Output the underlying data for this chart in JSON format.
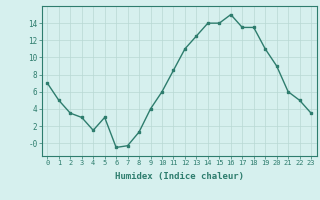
{
  "x": [
    0,
    1,
    2,
    3,
    4,
    5,
    6,
    7,
    8,
    9,
    10,
    11,
    12,
    13,
    14,
    15,
    16,
    17,
    18,
    19,
    20,
    21,
    22,
    23
  ],
  "y": [
    7,
    5,
    3.5,
    3,
    1.5,
    3,
    -0.5,
    -0.3,
    1.3,
    4,
    6,
    8.5,
    11,
    12.5,
    14,
    14,
    15,
    13.5,
    13.5,
    11,
    9,
    6,
    5,
    3.5
  ],
  "line_color": "#2e7d6e",
  "marker_color": "#2e7d6e",
  "bg_color": "#d6f0ee",
  "grid_color": "#b8d8d4",
  "xlabel": "Humidex (Indice chaleur)",
  "ylim": [
    -1.5,
    16
  ],
  "xlim": [
    -0.5,
    23.5
  ],
  "xticks": [
    0,
    1,
    2,
    3,
    4,
    5,
    6,
    7,
    8,
    9,
    10,
    11,
    12,
    13,
    14,
    15,
    16,
    17,
    18,
    19,
    20,
    21,
    22,
    23
  ],
  "tick_labels": [
    "0",
    "1",
    "2",
    "3",
    "4",
    "5",
    "6",
    "7",
    "8",
    "9",
    "10",
    "11",
    "12",
    "13",
    "14",
    "15",
    "16",
    "17",
    "18",
    "19",
    "20",
    "21",
    "22",
    "23"
  ],
  "yticks": [
    0,
    2,
    4,
    6,
    8,
    10,
    12,
    14
  ],
  "ytick_labels": [
    "-0",
    "2",
    "4",
    "6",
    "8",
    "10",
    "12",
    "14"
  ]
}
